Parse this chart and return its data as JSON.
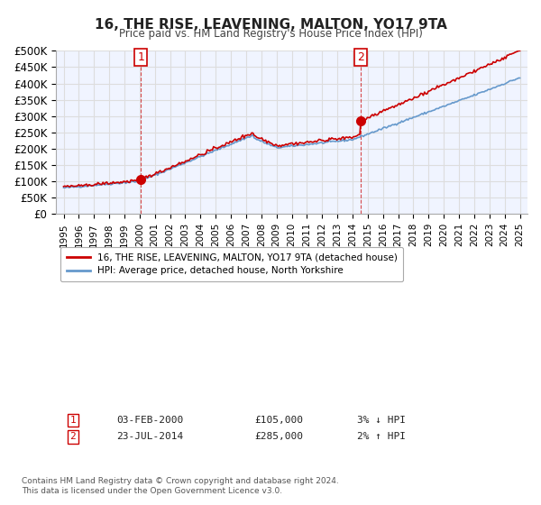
{
  "title": "16, THE RISE, LEAVENING, MALTON, YO17 9TA",
  "subtitle": "Price paid vs. HM Land Registry's House Price Index (HPI)",
  "xlabel": "",
  "ylabel": "",
  "ylim": [
    0,
    500000
  ],
  "yticks": [
    0,
    50000,
    100000,
    150000,
    200000,
    250000,
    300000,
    350000,
    400000,
    450000,
    500000
  ],
  "ytick_labels": [
    "£0",
    "£50K",
    "£100K",
    "£150K",
    "£200K",
    "£250K",
    "£300K",
    "£350K",
    "£400K",
    "£450K",
    "£500K"
  ],
  "xlim_start": 1994.5,
  "xlim_end": 2025.5,
  "xtick_years": [
    1995,
    1996,
    1997,
    1998,
    1999,
    2000,
    2001,
    2002,
    2003,
    2004,
    2005,
    2006,
    2007,
    2008,
    2009,
    2010,
    2011,
    2012,
    2013,
    2014,
    2015,
    2016,
    2017,
    2018,
    2019,
    2020,
    2021,
    2022,
    2023,
    2024,
    2025
  ],
  "sale1_x": 2000.09,
  "sale1_y": 105000,
  "sale1_label": "1",
  "sale2_x": 2014.55,
  "sale2_y": 285000,
  "sale2_label": "2",
  "sale_color": "#cc0000",
  "hpi_color": "#6699cc",
  "vline_color": "#cc0000",
  "grid_color": "#dddddd",
  "bg_color": "#f0f4ff",
  "plot_bg": "#f0f4ff",
  "legend_label_red": "16, THE RISE, LEAVENING, MALTON, YO17 9TA (detached house)",
  "legend_label_blue": "HPI: Average price, detached house, North Yorkshire",
  "note1_label": "1",
  "note1_date": "03-FEB-2000",
  "note1_price": "£105,000",
  "note1_hpi": "3% ↓ HPI",
  "note2_label": "2",
  "note2_date": "23-JUL-2014",
  "note2_price": "£285,000",
  "note2_hpi": "2% ↑ HPI",
  "footer": "Contains HM Land Registry data © Crown copyright and database right 2024.\nThis data is licensed under the Open Government Licence v3.0."
}
